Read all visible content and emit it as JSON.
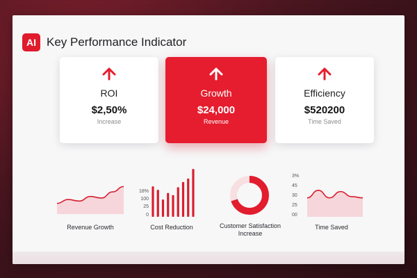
{
  "colors": {
    "accent": "#e51d2e",
    "panel": "#f7f7f8"
  },
  "header": {
    "logo_text": "AI",
    "title": "Key Performance Indicator"
  },
  "cards": [
    {
      "label": "ROI",
      "value": "$2,50%",
      "sub": "Increase",
      "icon": "arrow-up-icon"
    },
    {
      "label": "Growth",
      "value": "$24,000",
      "sub": "Revenue",
      "icon": "arrow-up-icon"
    },
    {
      "label": "Efficiency",
      "value": "$520200",
      "sub": "Time Saved",
      "icon": "arrow-up-icon"
    }
  ],
  "widgets": [
    {
      "label": "Revenue Growth"
    },
    {
      "label": "Cost Reduction",
      "ticks": [
        "18%",
        "100",
        "25",
        "0"
      ]
    },
    {
      "label_line1": "Customer Satisfaction",
      "label_line2": "Increase"
    },
    {
      "label": "Time Saved",
      "ticks": [
        "3%",
        "45",
        "30",
        "25",
        "00"
      ]
    }
  ],
  "chart_data": [
    {
      "type": "area",
      "label": "Revenue Growth",
      "x": [
        1,
        2,
        3,
        4,
        5,
        6,
        7
      ],
      "values": [
        28,
        38,
        34,
        46,
        42,
        58,
        72
      ]
    },
    {
      "type": "bar",
      "label": "Cost Reduction",
      "values": [
        70,
        62,
        40,
        55,
        50,
        68,
        80,
        88,
        110
      ],
      "yticks": [
        "18%",
        "100",
        "25",
        "0"
      ]
    },
    {
      "type": "pie",
      "label": "Customer Satisfaction Increase",
      "values": [
        70,
        30
      ]
    },
    {
      "type": "area",
      "label": "Time Saved",
      "x": [
        1,
        2,
        3,
        4,
        5,
        6
      ],
      "values": [
        30,
        42,
        30,
        40,
        32,
        30
      ],
      "yticks": [
        "3%",
        "45",
        "30",
        "25",
        "00"
      ]
    }
  ]
}
